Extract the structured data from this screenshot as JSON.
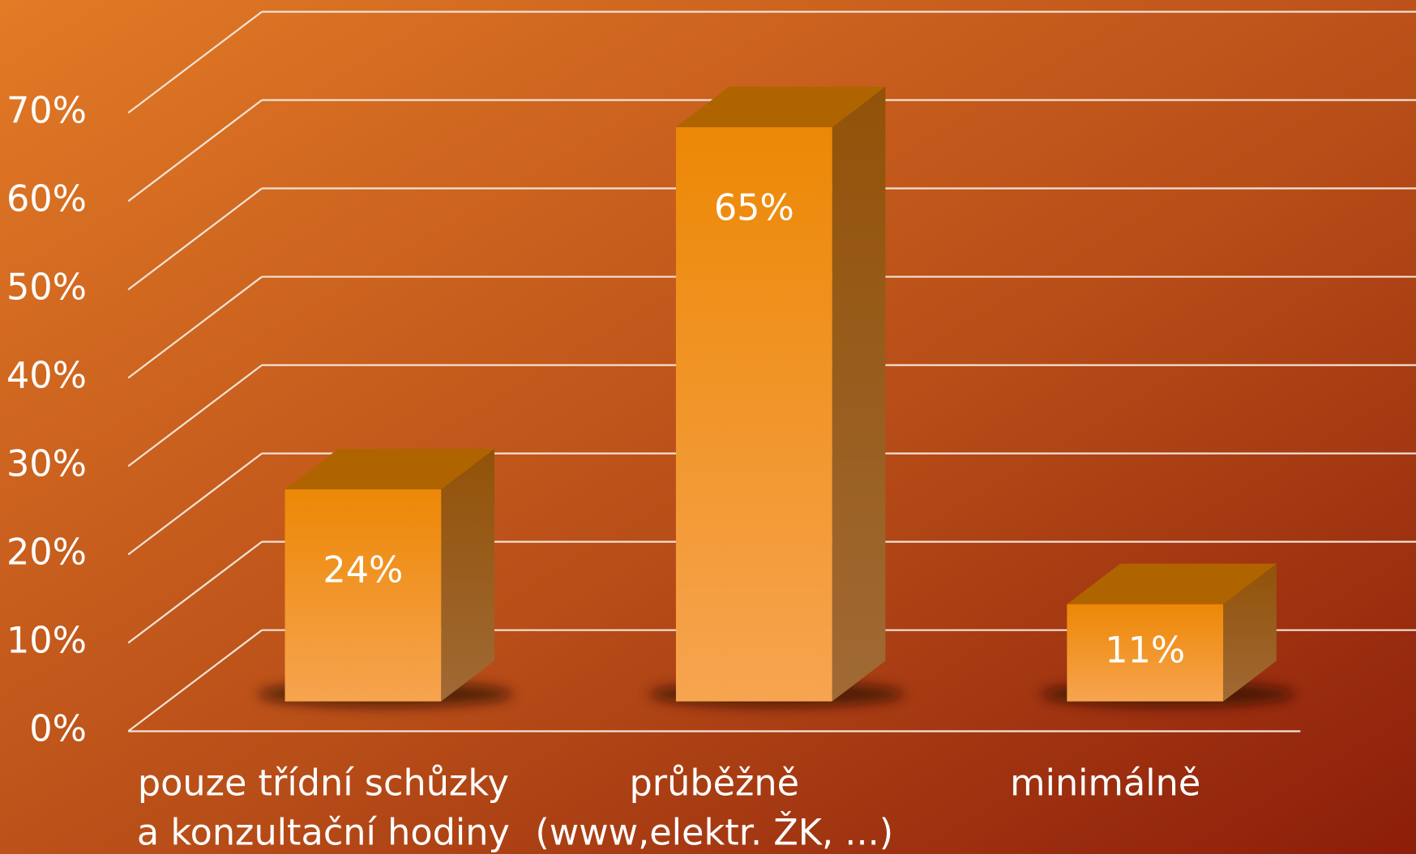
{
  "chart_data": {
    "type": "bar3d",
    "categories": [
      [
        "pouze třídní schůzky",
        "a konzultační hodiny"
      ],
      [
        "průběžně",
        "(www,elektr. ŽK, ...)"
      ],
      [
        "minimálně"
      ]
    ],
    "values": [
      24,
      65,
      11
    ],
    "value_labels": [
      "24%",
      "65%",
      "11%"
    ],
    "ylim": [
      0,
      70
    ],
    "yticks": [
      {
        "value": 0,
        "label": "0%"
      },
      {
        "value": 10,
        "label": "10%"
      },
      {
        "value": 20,
        "label": "20%"
      },
      {
        "value": 30,
        "label": "30%"
      },
      {
        "value": 40,
        "label": "40%"
      },
      {
        "value": 50,
        "label": "50%"
      },
      {
        "value": 60,
        "label": "60%"
      },
      {
        "value": 70,
        "label": "70%"
      }
    ],
    "grid": true,
    "color": "#ee8a0a"
  }
}
